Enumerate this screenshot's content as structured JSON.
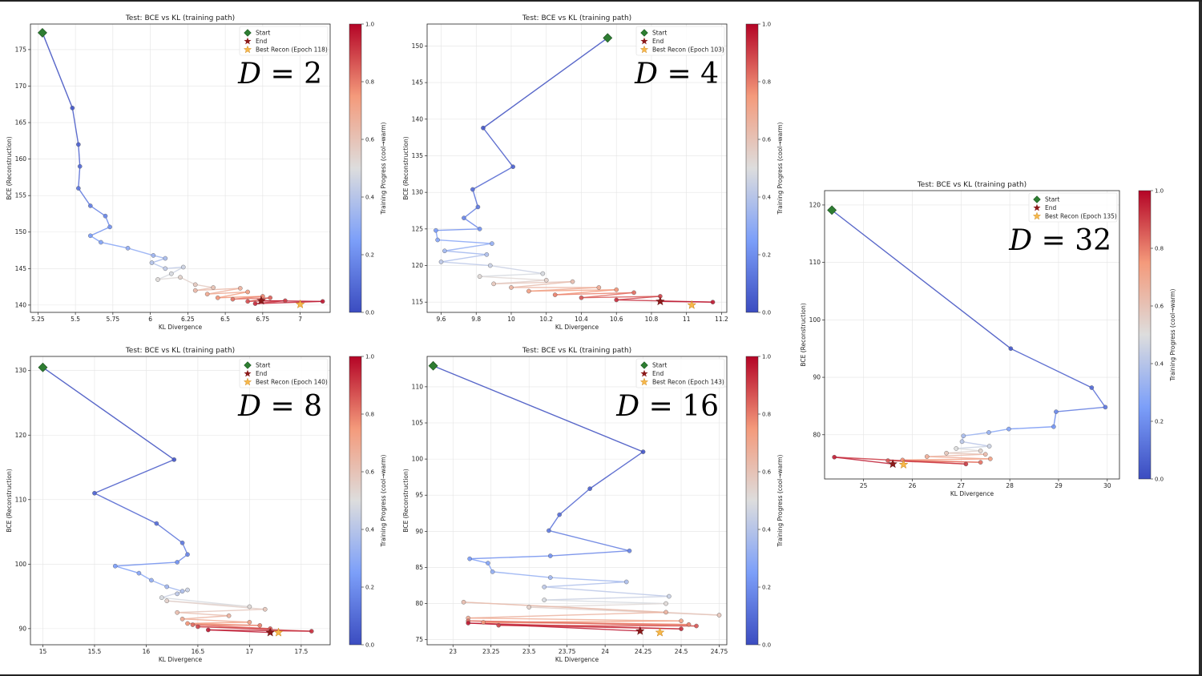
{
  "chart_data": [
    {
      "type": "line",
      "title": "Test: BCE vs KL (training path)",
      "xlabel": "KL Divergence",
      "ylabel": "BCE (Reconstruction)",
      "colorbar_label": "Training Progress (cool→warm)",
      "annotation": "D = 2",
      "xlim": [
        5.2,
        7.2
      ],
      "ylim": [
        139,
        178.5
      ],
      "xticks": [
        5.25,
        5.5,
        5.75,
        6.0,
        6.25,
        6.5,
        6.75,
        7.0
      ],
      "yticks": [
        140,
        145,
        150,
        155,
        160,
        165,
        170,
        175
      ],
      "legend": [
        "Start",
        "End",
        "Best Recon (Epoch 118)"
      ],
      "grid": true,
      "legend_position": "top-right",
      "start": [
        5.28,
        177.3
      ],
      "end": [
        6.74,
        140.6
      ],
      "best": [
        7.0,
        140.1
      ],
      "x": [
        5.28,
        5.48,
        5.52,
        5.53,
        5.52,
        5.6,
        5.7,
        5.73,
        5.6,
        5.67,
        5.85,
        6.02,
        6.1,
        6.01,
        6.1,
        6.22,
        6.14,
        6.05,
        6.2,
        6.3,
        6.42,
        6.3,
        6.6,
        6.38,
        6.65,
        6.45,
        6.75,
        6.55,
        6.8,
        6.65,
        6.9,
        6.7,
        7.15,
        6.74
      ],
      "y": [
        177.3,
        167.0,
        162.0,
        159.0,
        156.0,
        153.6,
        152.2,
        150.7,
        149.5,
        148.6,
        147.8,
        146.8,
        146.4,
        145.8,
        145.0,
        145.2,
        144.3,
        143.5,
        143.8,
        142.8,
        142.4,
        142.0,
        142.3,
        141.5,
        141.8,
        141.0,
        141.2,
        140.8,
        141.0,
        140.5,
        140.6,
        140.2,
        140.5,
        140.6
      ]
    },
    {
      "type": "line",
      "title": "Test: BCE vs KL (training path)",
      "xlabel": "KL Divergence",
      "ylabel": "BCE (Reconstruction)",
      "colorbar_label": "Training Progress (cool→warm)",
      "annotation": "D = 4",
      "xlim": [
        9.52,
        11.23
      ],
      "ylim": [
        113.6,
        153
      ],
      "xticks": [
        9.6,
        9.8,
        10.0,
        10.2,
        10.4,
        10.6,
        10.8,
        11.0,
        11.2
      ],
      "yticks": [
        115,
        120,
        125,
        130,
        135,
        140,
        145,
        150
      ],
      "legend": [
        "Start",
        "End",
        "Best Recon (Epoch 103)"
      ],
      "grid": true,
      "legend_position": "top-right",
      "start": [
        10.55,
        151.1
      ],
      "end": [
        10.85,
        115.1
      ],
      "best": [
        11.03,
        114.6
      ],
      "x": [
        10.55,
        9.84,
        10.01,
        9.78,
        9.81,
        9.73,
        9.82,
        9.57,
        9.58,
        9.89,
        9.62,
        9.86,
        9.6,
        9.88,
        10.18,
        9.82,
        10.2,
        9.9,
        10.35,
        10.0,
        10.5,
        10.1,
        10.6,
        10.25,
        10.7,
        10.4,
        10.85,
        10.6,
        11.15,
        10.85
      ],
      "y": [
        151.1,
        138.8,
        133.5,
        130.4,
        128.0,
        126.5,
        125.0,
        124.8,
        123.5,
        123.0,
        122.0,
        121.5,
        120.5,
        120.0,
        118.9,
        118.5,
        118.0,
        117.5,
        117.8,
        117.0,
        117.0,
        116.5,
        116.7,
        116.0,
        116.3,
        115.6,
        115.8,
        115.3,
        115.0,
        115.1
      ]
    },
    {
      "type": "line",
      "title": "Test: BCE vs KL (training path)",
      "xlabel": "KL Divergence",
      "ylabel": "BCE (Reconstruction)",
      "colorbar_label": "Training Progress (cool→warm)",
      "annotation": "D = 8",
      "xlim": [
        14.88,
        17.78
      ],
      "ylim": [
        87.5,
        132.2
      ],
      "xticks": [
        15.0,
        15.5,
        16.0,
        16.5,
        17.0,
        17.5
      ],
      "yticks": [
        90,
        100,
        110,
        120,
        130
      ],
      "legend": [
        "Start",
        "End",
        "Best Recon (Epoch 140)"
      ],
      "grid": true,
      "legend_position": "top-right",
      "start": [
        15.0,
        130.5
      ],
      "end": [
        17.2,
        89.4
      ],
      "best": [
        17.28,
        89.4
      ],
      "x": [
        15.0,
        16.27,
        15.5,
        16.1,
        16.35,
        16.4,
        16.3,
        15.7,
        15.93,
        16.05,
        16.2,
        16.35,
        16.3,
        16.4,
        16.15,
        17.0,
        16.2,
        17.15,
        16.3,
        16.8,
        16.35,
        17.0,
        16.4,
        17.1,
        16.45,
        17.2,
        16.5,
        17.6,
        16.6,
        17.2
      ],
      "y": [
        130.5,
        116.2,
        111.0,
        106.3,
        103.3,
        101.5,
        100.3,
        99.7,
        98.6,
        97.5,
        96.5,
        95.8,
        95.4,
        96.0,
        94.8,
        93.4,
        94.3,
        93.0,
        92.5,
        92.0,
        91.5,
        91.0,
        90.8,
        90.5,
        90.6,
        90.0,
        90.3,
        89.6,
        89.8,
        89.4
      ]
    },
    {
      "type": "line",
      "title": "Test: BCE vs KL (training path)",
      "xlabel": "KL Divergence",
      "ylabel": "BCE (Reconstruction)",
      "colorbar_label": "Training Progress (cool→warm)",
      "annotation": "D = 16",
      "xlim": [
        22.83,
        24.8
      ],
      "ylim": [
        74.3,
        114.2
      ],
      "xticks": [
        23.0,
        23.25,
        23.5,
        23.75,
        24.0,
        24.25,
        24.5,
        24.75
      ],
      "yticks": [
        75,
        80,
        85,
        90,
        95,
        100,
        105,
        110
      ],
      "legend": [
        "Start",
        "End",
        "Best Recon (Epoch 143)"
      ],
      "grid": true,
      "legend_position": "top-right",
      "start": [
        22.87,
        112.9
      ],
      "end": [
        24.23,
        76.2
      ],
      "best": [
        24.36,
        76.0
      ],
      "x": [
        22.87,
        24.25,
        23.9,
        23.7,
        23.63,
        24.16,
        23.64,
        23.11,
        23.23,
        23.26,
        23.64,
        24.14,
        23.6,
        24.42,
        23.6,
        24.4,
        23.5,
        24.75,
        23.07,
        24.4,
        23.1,
        24.5,
        23.2,
        24.55,
        23.1,
        24.6,
        23.3,
        24.5,
        23.1,
        24.23
      ],
      "y": [
        112.9,
        101.0,
        95.9,
        92.3,
        90.1,
        87.3,
        86.6,
        86.2,
        85.6,
        84.4,
        83.6,
        83.0,
        82.3,
        81.0,
        80.5,
        80.0,
        79.5,
        78.4,
        80.2,
        78.8,
        78.0,
        77.6,
        77.4,
        77.1,
        77.6,
        76.9,
        77.0,
        76.5,
        77.3,
        76.2
      ]
    },
    {
      "type": "line",
      "title": "Test: BCE vs KL (training path)",
      "xlabel": "KL Divergence",
      "ylabel": "BCE (Reconstruction)",
      "colorbar_label": "Training Progress (cool→warm)",
      "annotation": "D = 32",
      "xlim": [
        24.2,
        30.25
      ],
      "ylim": [
        72.3,
        122.5
      ],
      "xticks": [
        25,
        26,
        27,
        28,
        29,
        30
      ],
      "yticks": [
        80,
        90,
        100,
        110,
        120
      ],
      "legend": [
        "Start",
        "End",
        "Best Recon (Epoch 135)"
      ],
      "grid": true,
      "legend_position": "top-right",
      "start": [
        24.35,
        119.1
      ],
      "end": [
        25.6,
        74.9
      ],
      "best": [
        25.82,
        74.8
      ],
      "x": [
        24.35,
        28.02,
        29.68,
        29.96,
        28.95,
        28.9,
        27.98,
        27.57,
        27.05,
        27.02,
        27.58,
        26.9,
        27.4,
        26.7,
        27.5,
        26.3,
        27.6,
        25.8,
        27.4,
        25.5,
        27.1,
        24.4,
        25.6
      ],
      "y": [
        119.1,
        95.0,
        88.2,
        84.8,
        84.0,
        81.4,
        81.0,
        80.4,
        79.8,
        78.8,
        78.0,
        77.6,
        77.2,
        76.8,
        76.6,
        76.2,
        75.8,
        75.6,
        75.2,
        75.5,
        74.9,
        76.1,
        74.9
      ]
    }
  ]
}
